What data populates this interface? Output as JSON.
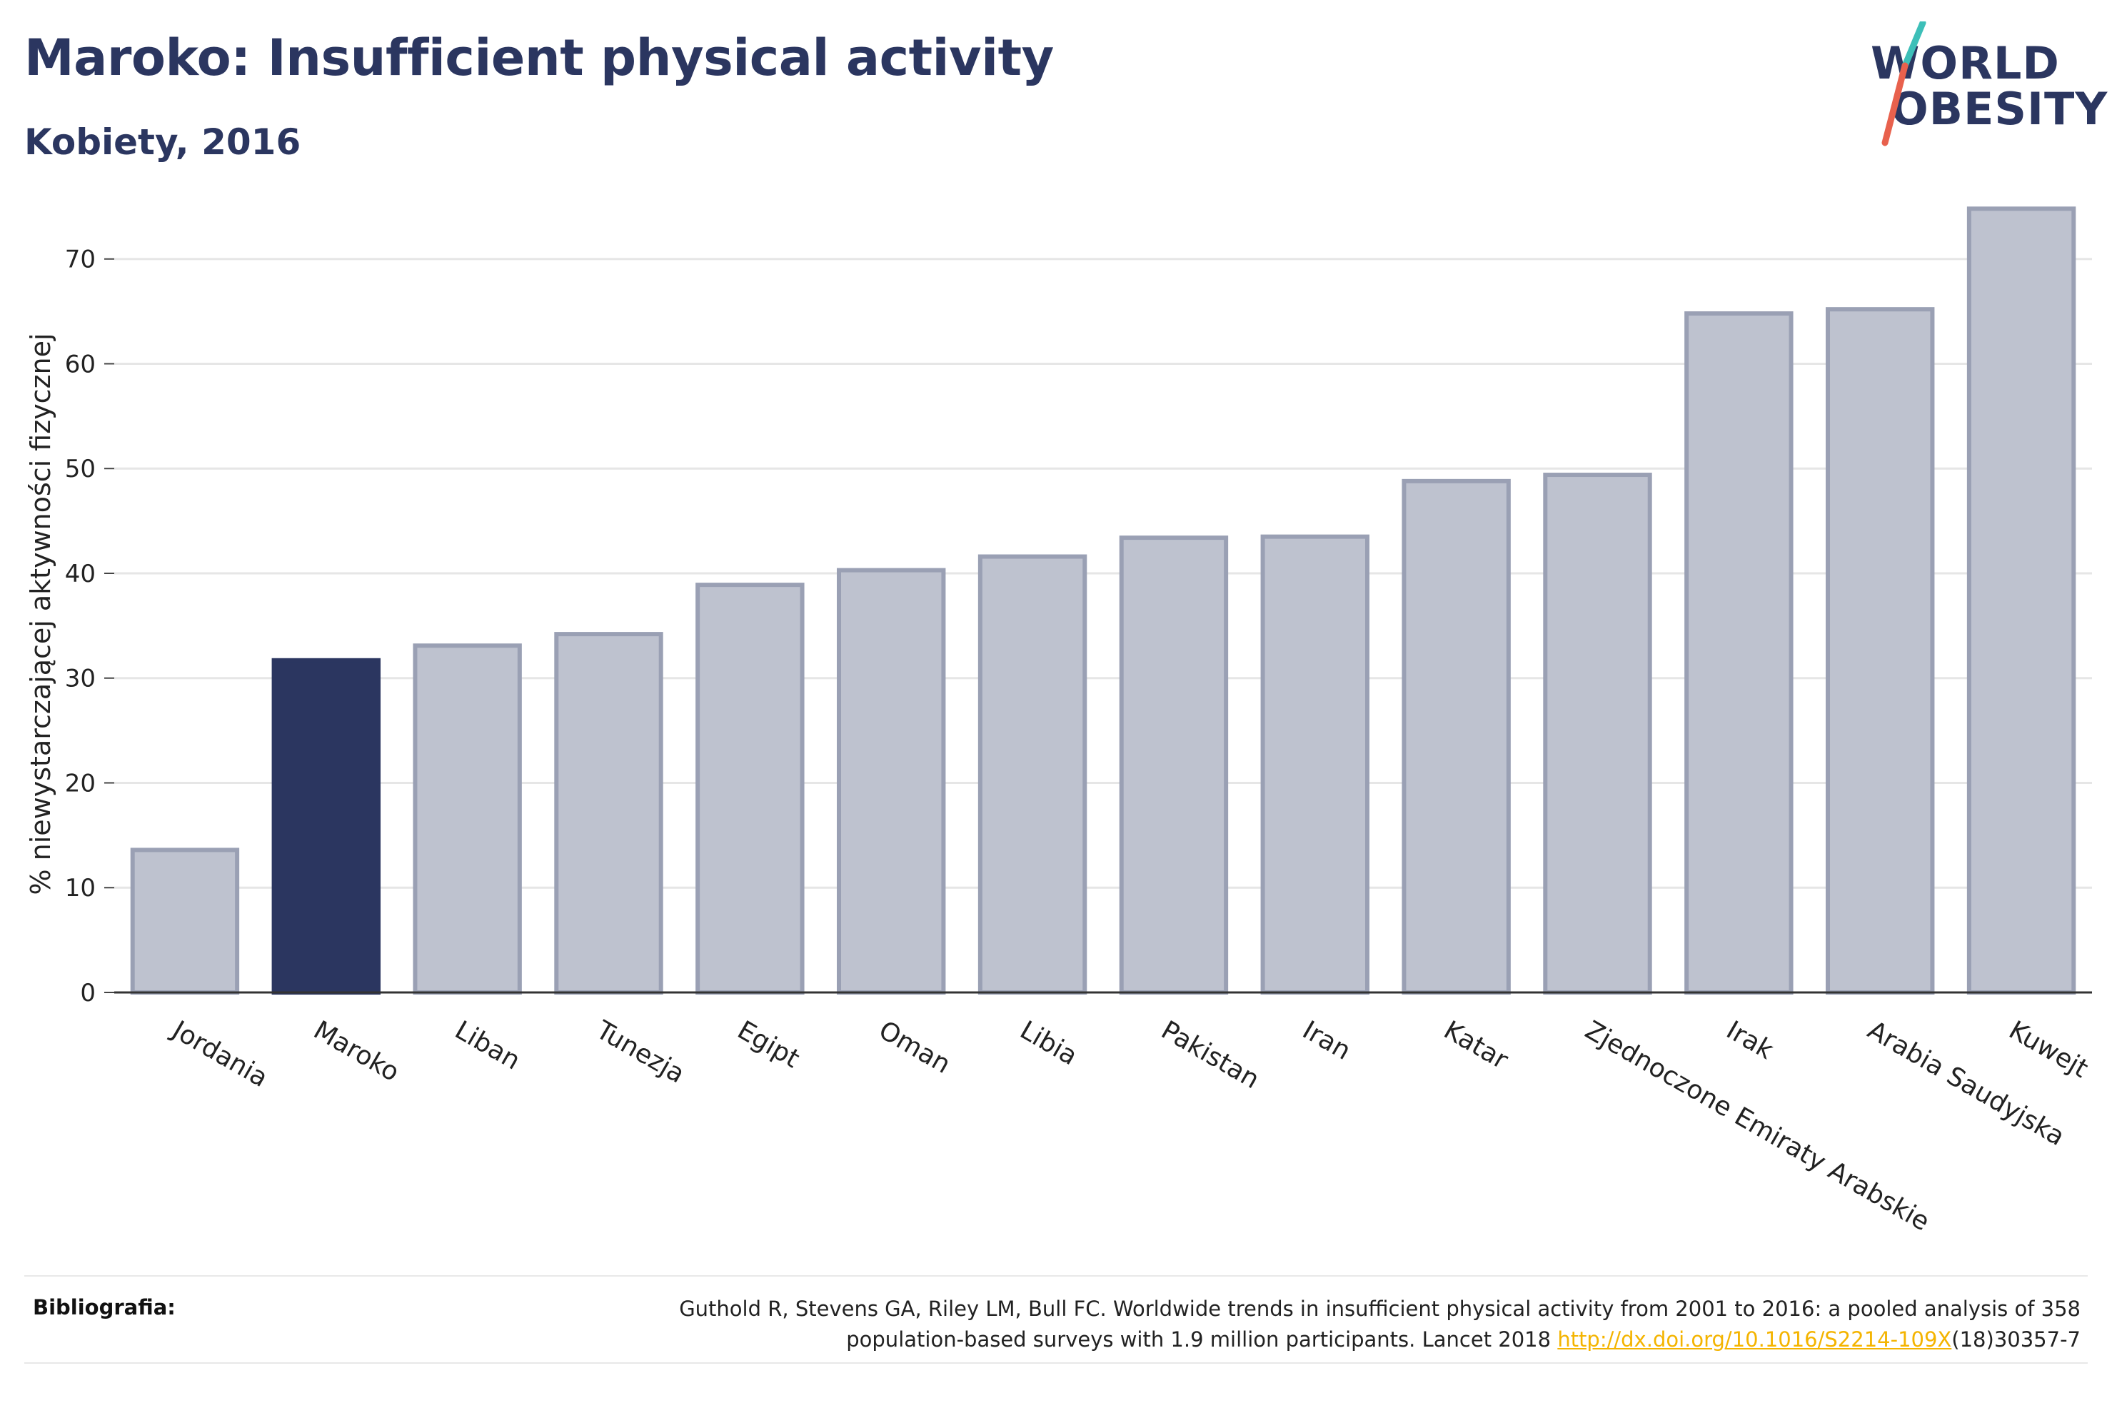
{
  "header": {
    "title": "Maroko: Insufficient physical activity",
    "subtitle": "Kobiety, 2016"
  },
  "logo": {
    "line1": "WORLD",
    "line2": "OBESITY",
    "slash_color_top": "#3dbfb8",
    "slash_color_bottom": "#e8614d"
  },
  "colors": {
    "highlight_bar": "#2b3660",
    "other_bar_fill": "#bec2cf",
    "other_bar_stroke": "#9aa0b4",
    "text": "#2b3660",
    "grid": "#e6e6e6"
  },
  "chart_data": {
    "type": "bar",
    "title": "",
    "xlabel": "",
    "ylabel": "% niewystarczającej aktywności fizycznej",
    "ylim": [
      0,
      77
    ],
    "yticks": [
      0,
      10,
      20,
      30,
      40,
      50,
      60,
      70
    ],
    "grid": true,
    "highlight": "Maroko",
    "categories": [
      "Jordania",
      "Maroko",
      "Liban",
      "Tunezja",
      "Egipt",
      "Oman",
      "Libia",
      "Pakistan",
      "Iran",
      "Katar",
      "Zjednoczone Emiraty Arabskie",
      "Irak",
      "Arabia Saudyjska",
      "Kuwejt"
    ],
    "values": [
      13.6,
      31.7,
      33.1,
      34.2,
      38.9,
      40.3,
      41.6,
      43.4,
      43.5,
      48.8,
      49.4,
      64.8,
      65.2,
      74.8
    ]
  },
  "footer": {
    "label": "Bibliografia:",
    "line1": "Guthold R, Stevens GA, Riley LM, Bull FC. Worldwide trends in insufficient physical activity from 2001 to 2016: a pooled analysis of 358",
    "line2_pre": "population-based surveys with 1.9 million participants. Lancet 2018 ",
    "link": "http://dx.doi.org/10.1016/S2214-109X",
    "line2_post": "(18)30357-7"
  }
}
